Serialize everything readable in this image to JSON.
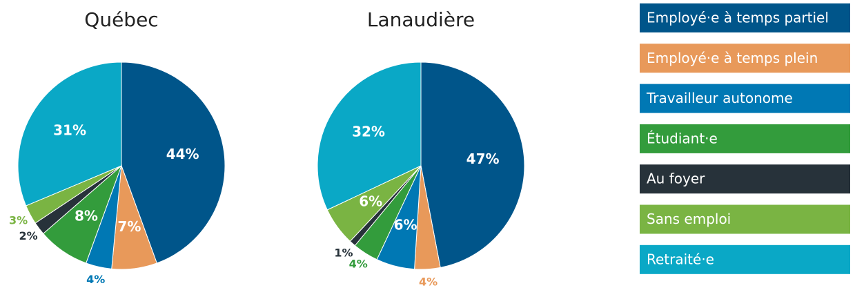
{
  "legend": {
    "labels": [
      "Employé·e à temps partiel",
      "Employé·e à temps plein",
      "Travailleur autonome",
      "Étudiant·e",
      "Au foyer",
      "Sans emploi",
      "Retraité·e"
    ],
    "colors": [
      "#00558a",
      "#e8995a",
      "#0078b4",
      "#339c3c",
      "#27323a",
      "#7ab443",
      "#0aa8c6"
    ]
  },
  "chart_data": [
    {
      "type": "pie",
      "title": "Québec",
      "values": [
        44,
        7,
        4,
        8,
        2,
        3,
        31
      ],
      "value_labels": [
        "44%",
        "7%",
        "4%",
        "8%",
        "2%",
        "3%",
        "31%"
      ]
    },
    {
      "type": "pie",
      "title": "Lanaudière",
      "values": [
        47,
        4,
        6,
        4,
        1,
        6,
        32
      ],
      "value_labels": [
        "47%",
        "4%",
        "6%",
        "4%",
        "1%",
        "6%",
        "32%"
      ]
    }
  ]
}
